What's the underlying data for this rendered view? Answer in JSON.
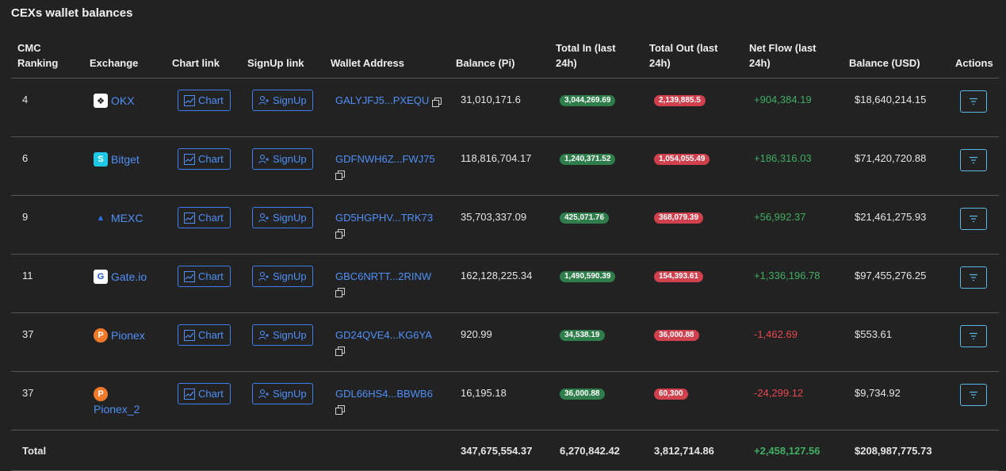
{
  "title": "CEXs wallet balances",
  "headers": {
    "rank": [
      "CMC",
      "Ranking"
    ],
    "exchange": "Exchange",
    "chart": "Chart link",
    "signup": "SignUp link",
    "address": "Wallet Address",
    "balance_pi": "Balance (Pi)",
    "total_in": [
      "Total In (last",
      "24h)"
    ],
    "total_out": [
      "Total Out (last",
      "24h)"
    ],
    "net_flow": [
      "Net Flow (last",
      "24h)"
    ],
    "balance_usd": "Balance (USD)",
    "actions": "Actions"
  },
  "chart_label": "Chart",
  "signup_label": "SignUp",
  "rows": [
    {
      "rank": "4",
      "exchange": "OKX",
      "logo": "okx-logo",
      "address": "GALYJFJ5...PXEQU",
      "balance_pi": "31,010,171.6",
      "total_in": "3,044,269.69",
      "total_out": "2,139,885.5",
      "net_flow": "+904,384.19",
      "net_sign": "pos",
      "balance_usd": "$18,640,214.15"
    },
    {
      "rank": "6",
      "exchange": "Bitget",
      "logo": "bitget-logo",
      "address": "GDFNWH6Z...FWJ75",
      "balance_pi": "118,816,704.17",
      "total_in": "1,240,371.52",
      "total_out": "1,054,055.49",
      "net_flow": "+186,316.03",
      "net_sign": "pos",
      "balance_usd": "$71,420,720.88"
    },
    {
      "rank": "9",
      "exchange": "MEXC",
      "logo": "mexc-logo",
      "address": "GD5HGPHV...TRK73",
      "balance_pi": "35,703,337.09",
      "total_in": "425,071.76",
      "total_out": "368,079.39",
      "net_flow": "+56,992.37",
      "net_sign": "pos",
      "balance_usd": "$21,461,275.93"
    },
    {
      "rank": "11",
      "exchange": "Gate.io",
      "logo": "gateio-logo",
      "address": "GBC6NRTT...2RINW",
      "balance_pi": "162,128,225.34",
      "total_in": "1,490,590.39",
      "total_out": "154,393.61",
      "net_flow": "+1,336,196.78",
      "net_sign": "pos",
      "balance_usd": "$97,455,276.25"
    },
    {
      "rank": "37",
      "exchange": "Pionex",
      "logo": "pionex-logo",
      "address": "GD24QVE4...KG6YA",
      "balance_pi": "920.99",
      "total_in": "34,538.19",
      "total_out": "36,000.88",
      "net_flow": "-1,462.69",
      "net_sign": "neg",
      "balance_usd": "$553.61"
    },
    {
      "rank": "37",
      "exchange": "Pionex_2",
      "logo": "pionex-logo",
      "address": "GDL66HS4...BBWB6",
      "balance_pi": "16,195.18",
      "total_in": "36,000.88",
      "total_out": "60,300",
      "net_flow": "-24,299.12",
      "net_sign": "neg",
      "balance_usd": "$9,734.92"
    }
  ],
  "total": {
    "label": "Total",
    "balance_pi": "347,675,554.37",
    "total_in": "6,270,842.42",
    "total_out": "3,812,714.86",
    "net_flow": "+2,458,127.56",
    "balance_usd": "$208,987,775.73"
  },
  "colors": {
    "background": "#222222",
    "link": "#4f8ff7",
    "positive": "#3fae62",
    "negative": "#e5484d",
    "pill_in": "#2e7d4a",
    "pill_out": "#d0404d"
  }
}
